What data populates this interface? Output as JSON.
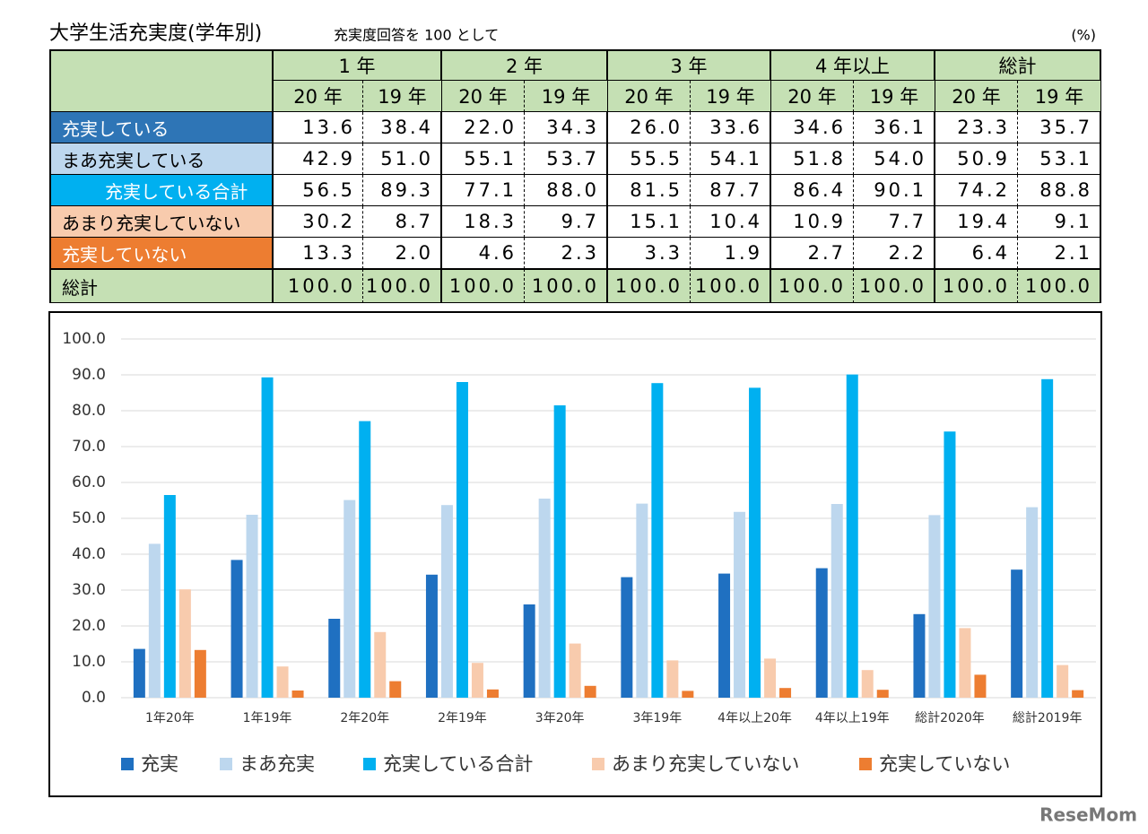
{
  "header": {
    "title": "大学生活充実度(学年別)",
    "subtitle": "充実度回答を 100 として",
    "unit": "(%)"
  },
  "table": {
    "groups": [
      "1 年",
      "2 年",
      "3 年",
      "4 年以上",
      "総計"
    ],
    "subheaders": [
      "20 年",
      "19 年",
      "20 年",
      "19 年",
      "20 年",
      "19 年",
      "20 年",
      "19 年",
      "20 年",
      "19 年"
    ],
    "rows": [
      {
        "label": "充実している",
        "cells": [
          "13.6",
          "38.4",
          "22.0",
          "34.3",
          "26.0",
          "33.6",
          "34.6",
          "36.1",
          "23.3",
          "35.7"
        ]
      },
      {
        "label": "まあ充実している",
        "cells": [
          "42.9",
          "51.0",
          "55.1",
          "53.7",
          "55.5",
          "54.1",
          "51.8",
          "54.0",
          "50.9",
          "53.1"
        ]
      },
      {
        "label": "充実している合計",
        "cells": [
          "56.5",
          "89.3",
          "77.1",
          "88.0",
          "81.5",
          "87.7",
          "86.4",
          "90.1",
          "74.2",
          "88.8"
        ]
      },
      {
        "label": "あまり充実していない",
        "cells": [
          "30.2",
          "8.7",
          "18.3",
          "9.7",
          "15.1",
          "10.4",
          "10.9",
          "7.7",
          "19.4",
          "9.1"
        ]
      },
      {
        "label": "充実していない",
        "cells": [
          "13.3",
          "2.0",
          "4.6",
          "2.3",
          "3.3",
          "1.9",
          "2.7",
          "2.2",
          "6.4",
          "2.1"
        ]
      },
      {
        "label": "総計",
        "cells": [
          "100.0",
          "100.0",
          "100.0",
          "100.0",
          "100.0",
          "100.0",
          "100.0",
          "100.0",
          "100.0",
          "100.0"
        ]
      }
    ]
  },
  "chart_data": {
    "type": "bar",
    "categories": [
      "1年20年",
      "1年19年",
      "2年20年",
      "2年19年",
      "3年20年",
      "3年19年",
      "4年以上20年",
      "4年以上19年",
      "総計2020年",
      "総計2019年"
    ],
    "series": [
      {
        "name": "充実",
        "color": "#1f70c1",
        "values": [
          13.6,
          38.4,
          22.0,
          34.3,
          26.0,
          33.6,
          34.6,
          36.1,
          23.3,
          35.7
        ]
      },
      {
        "name": "まあ充実",
        "color": "#bdd7ee",
        "values": [
          42.9,
          51.0,
          55.1,
          53.7,
          55.5,
          54.1,
          51.8,
          54.0,
          50.9,
          53.1
        ]
      },
      {
        "name": "充実している合計",
        "color": "#00b0f0",
        "values": [
          56.5,
          89.3,
          77.1,
          88.0,
          81.5,
          87.7,
          86.4,
          90.1,
          74.2,
          88.8
        ]
      },
      {
        "name": "あまり充実していない",
        "color": "#f8cbad",
        "values": [
          30.2,
          8.7,
          18.3,
          9.7,
          15.1,
          10.4,
          10.9,
          7.7,
          19.4,
          9.1
        ]
      },
      {
        "name": "充実していない",
        "color": "#ed7d31",
        "values": [
          13.3,
          2.0,
          4.6,
          2.3,
          3.3,
          1.9,
          2.7,
          2.2,
          6.4,
          2.1
        ]
      }
    ],
    "ylim": [
      0,
      100
    ],
    "yticks": [
      {
        "value": 0,
        "label": "0.0"
      },
      {
        "value": 10,
        "label": "10.0"
      },
      {
        "value": 20,
        "label": "20.0"
      },
      {
        "value": 30,
        "label": "30.0"
      },
      {
        "value": 40,
        "label": "40.0"
      },
      {
        "value": 50,
        "label": "50.0"
      },
      {
        "value": 60,
        "label": "60.0"
      },
      {
        "value": 70,
        "label": "70.0"
      },
      {
        "value": 80,
        "label": "80.0"
      },
      {
        "value": 90,
        "label": "90.0"
      },
      {
        "value": 100,
        "label": "100.0"
      }
    ],
    "grid": true,
    "legend": "bottom"
  },
  "watermark": "ReseMom"
}
